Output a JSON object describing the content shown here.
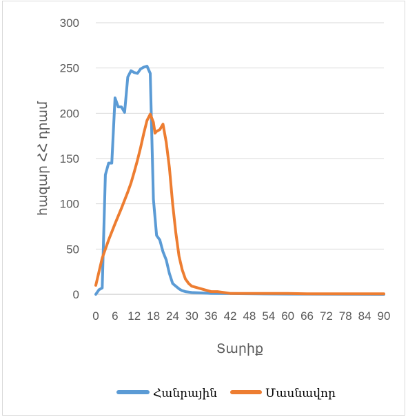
{
  "chart_data": {
    "type": "line",
    "title": "",
    "xlabel": "Տարիք",
    "ylabel": "հազար ՀՀ դրամ",
    "xlim": [
      0,
      90
    ],
    "ylim": [
      0,
      300
    ],
    "x_ticks": [
      0,
      6,
      12,
      18,
      24,
      30,
      36,
      42,
      48,
      54,
      60,
      66,
      72,
      78,
      84,
      90
    ],
    "y_ticks": [
      0,
      50,
      100,
      150,
      200,
      250,
      300
    ],
    "grid": true,
    "legend_position": "bottom",
    "series": [
      {
        "name": "Հանրային",
        "color": "#5B9BD5",
        "points": [
          [
            0,
            0
          ],
          [
            1,
            5
          ],
          [
            2,
            7
          ],
          [
            3,
            132
          ],
          [
            4,
            145
          ],
          [
            5,
            145
          ],
          [
            6,
            217
          ],
          [
            7,
            207
          ],
          [
            8,
            207
          ],
          [
            9,
            201
          ],
          [
            10,
            240
          ],
          [
            11,
            247
          ],
          [
            12,
            245
          ],
          [
            13,
            244
          ],
          [
            14,
            249
          ],
          [
            15,
            251
          ],
          [
            16,
            252
          ],
          [
            17,
            244
          ],
          [
            18,
            105
          ],
          [
            19,
            65
          ],
          [
            20,
            60
          ],
          [
            21,
            47
          ],
          [
            22,
            38
          ],
          [
            23,
            23
          ],
          [
            24,
            12
          ],
          [
            25,
            9
          ],
          [
            26,
            6
          ],
          [
            27,
            4
          ],
          [
            28,
            3
          ],
          [
            30,
            2
          ],
          [
            33,
            1.5
          ],
          [
            36,
            1
          ],
          [
            42,
            0.8
          ],
          [
            50,
            0.5
          ],
          [
            60,
            0.3
          ],
          [
            70,
            0.2
          ],
          [
            80,
            0.1
          ],
          [
            90,
            0
          ]
        ]
      },
      {
        "name": "Մասնավոր",
        "color": "#ED7D31",
        "points": [
          [
            0,
            10
          ],
          [
            2,
            40
          ],
          [
            4,
            60
          ],
          [
            6,
            78
          ],
          [
            8,
            95
          ],
          [
            10,
            113
          ],
          [
            11,
            123
          ],
          [
            12,
            135
          ],
          [
            13,
            148
          ],
          [
            14,
            162
          ],
          [
            15,
            178
          ],
          [
            16,
            192
          ],
          [
            17,
            199
          ],
          [
            18,
            190
          ],
          [
            18.5,
            178
          ],
          [
            19,
            180
          ],
          [
            20,
            182
          ],
          [
            21,
            188
          ],
          [
            22,
            168
          ],
          [
            23,
            140
          ],
          [
            24,
            100
          ],
          [
            25,
            68
          ],
          [
            26,
            42
          ],
          [
            27,
            27
          ],
          [
            28,
            17
          ],
          [
            29,
            12
          ],
          [
            30,
            9
          ],
          [
            32,
            7
          ],
          [
            34,
            5
          ],
          [
            36,
            3
          ],
          [
            38,
            3
          ],
          [
            40,
            2
          ],
          [
            42,
            1
          ],
          [
            48,
            1
          ],
          [
            54,
            1
          ],
          [
            60,
            1
          ],
          [
            66,
            0.5
          ],
          [
            72,
            0.5
          ],
          [
            78,
            0.5
          ],
          [
            84,
            0.5
          ],
          [
            90,
            0.5
          ]
        ]
      }
    ]
  }
}
